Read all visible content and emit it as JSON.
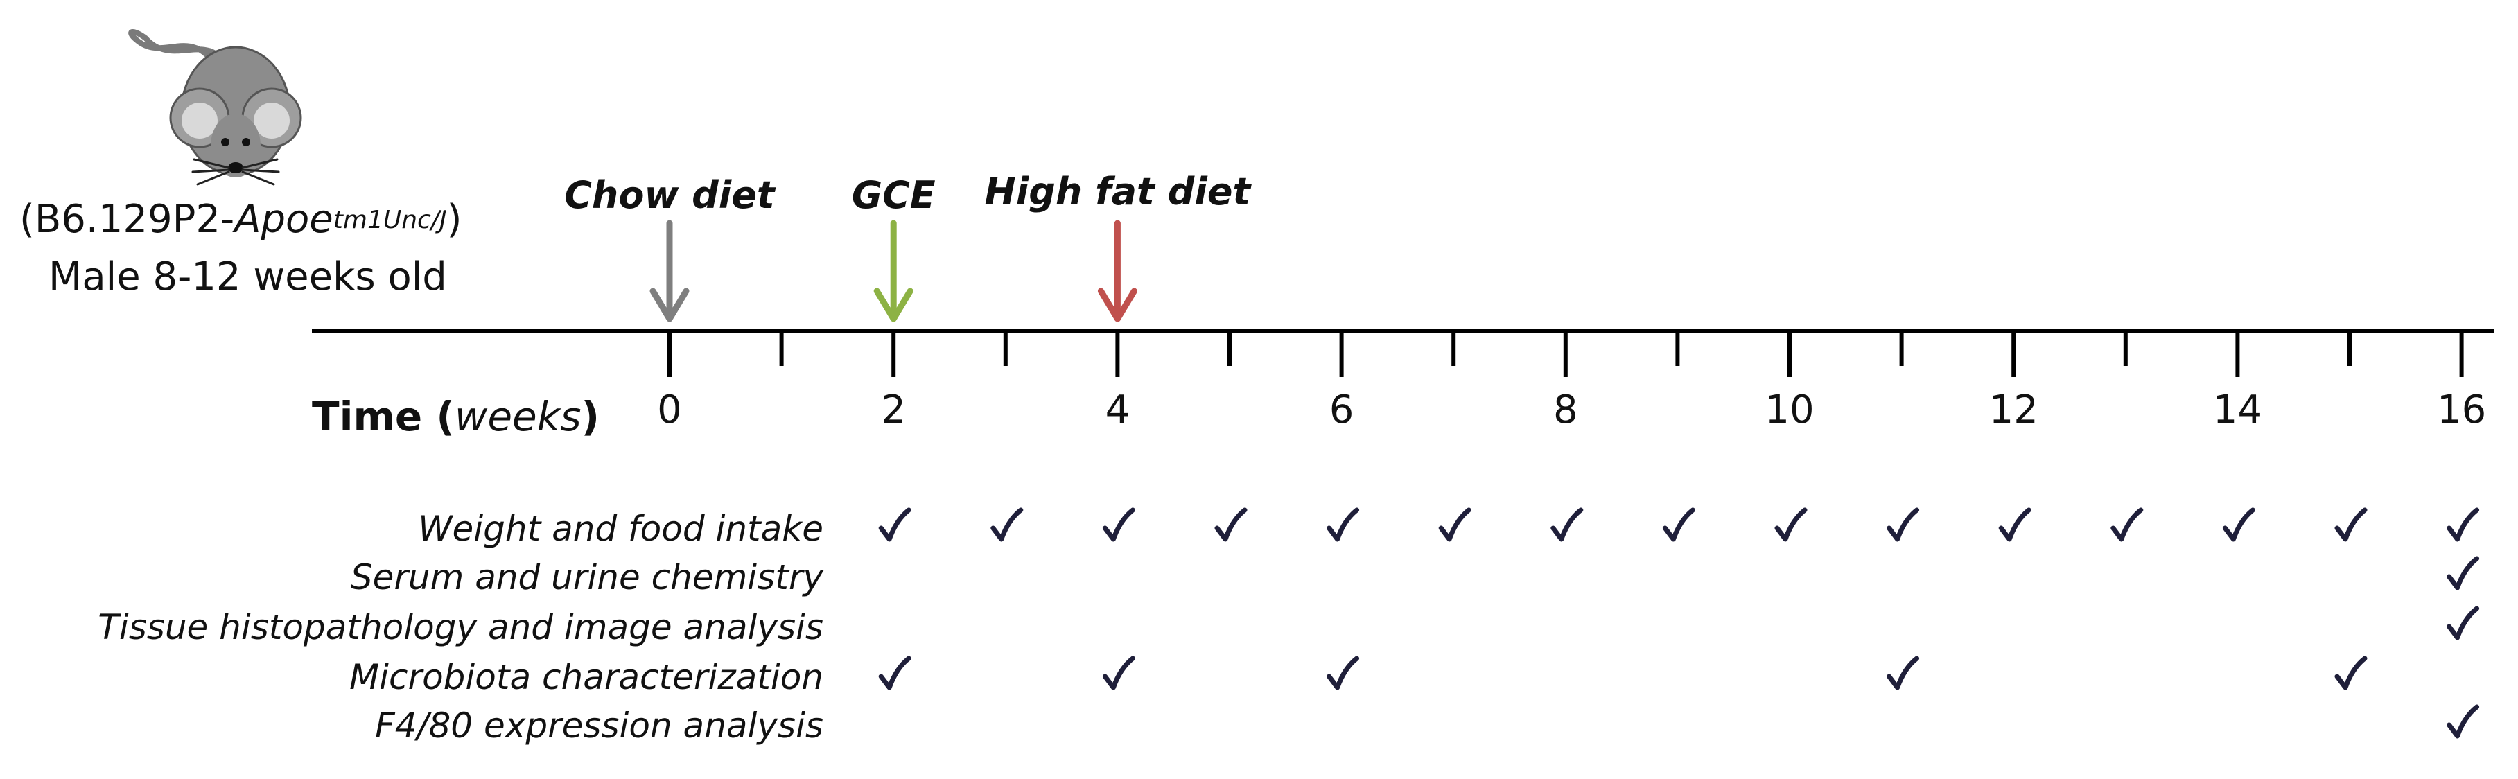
{
  "subject": {
    "strain_prefix": "(B6.129P2-",
    "strain_gene": "Apoe",
    "strain_allele": "tm1Unc/J",
    "strain_suffix": ")",
    "description": "Male 8-12 weeks old"
  },
  "timeline": {
    "title_bold_part": "Time (",
    "title_italic_part": "weeks",
    "title_closing": ")",
    "ticks": [
      0,
      1,
      2,
      3,
      4,
      5,
      6,
      7,
      8,
      9,
      10,
      11,
      12,
      13,
      14,
      15,
      16
    ],
    "labeled_ticks": [
      0,
      2,
      4,
      6,
      8,
      10,
      12,
      14,
      16
    ]
  },
  "events": [
    {
      "label": "Chow diet",
      "week": 0,
      "color": "#7f7f7f"
    },
    {
      "label": "GCE",
      "week": 2,
      "color": "#8db244"
    },
    {
      "label": "High fat diet",
      "week": 4,
      "color": "#c0504d"
    }
  ],
  "measurements": [
    {
      "label": "Weight and food intake",
      "weeks": [
        2,
        3,
        4,
        5,
        6,
        7,
        8,
        9,
        10,
        11,
        12,
        13,
        14,
        15,
        16
      ]
    },
    {
      "label": "Serum and urine chemistry",
      "weeks": [
        16
      ]
    },
    {
      "label": "Tissue histopathology  and image analysis",
      "weeks": [
        16
      ]
    },
    {
      "label": "Microbiota characterization",
      "weeks": [
        2,
        4,
        6,
        11,
        15
      ]
    },
    {
      "label": "F4/80 expression analysis",
      "weeks": [
        16
      ]
    }
  ],
  "icons": {
    "mouse": "mouse-icon",
    "check": "checkmark-icon",
    "arrow": "down-arrow-icon"
  },
  "colors": {
    "axis": "#000000",
    "mouse_body": "#8c8c8c",
    "mouse_ear_inner": "#d9d9d9",
    "check": "#1f1f3a"
  }
}
